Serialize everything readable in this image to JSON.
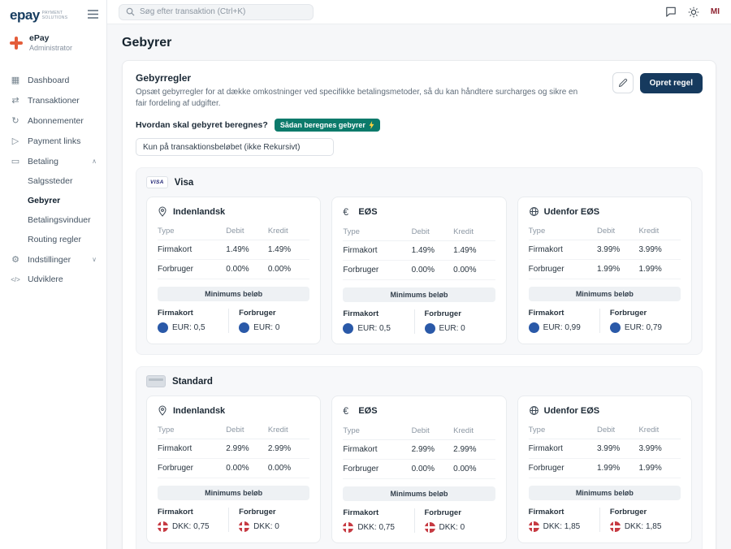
{
  "sidebar": {
    "logo_text": "epay",
    "logo_sub1": "PAYMENT",
    "logo_sub2": "SOLUTIONS",
    "account_name": "ePay",
    "account_role": "Administrator",
    "items": [
      {
        "label": "Dashboard",
        "icon": "dashboard-icon",
        "glyph": "▦"
      },
      {
        "label": "Transaktioner",
        "icon": "transactions-icon",
        "glyph": "⇄"
      },
      {
        "label": "Abonnementer",
        "icon": "subscriptions-icon",
        "glyph": "↻"
      },
      {
        "label": "Payment links",
        "icon": "payment-links-icon",
        "glyph": "▷"
      },
      {
        "label": "Betaling",
        "icon": "payments-icon",
        "glyph": "▭",
        "chevron_glyph": "∧"
      },
      {
        "label": "Indstillinger",
        "icon": "settings-icon",
        "glyph": "⚙",
        "chevron_glyph": "∨"
      },
      {
        "label": "Udviklere",
        "icon": "developers-icon",
        "glyph": "</>"
      }
    ],
    "betaling_sub": [
      {
        "label": "Salgssteder",
        "active": false
      },
      {
        "label": "Gebyrer",
        "active": true
      },
      {
        "label": "Betalingsvinduer",
        "active": false
      },
      {
        "label": "Routing regler",
        "active": false
      }
    ]
  },
  "topbar": {
    "search_placeholder": "Søg efter transaktion (Ctrl+K)",
    "avatar_initials": "MI"
  },
  "page": {
    "title": "Gebyrer"
  },
  "panel": {
    "title": "Gebyrregler",
    "description": "Opsæt gebyrregler for at dække omkostninger ved specifikke betalingsmetoder, så du kan håndtere surcharges og sikre en fair fordeling af udgifter.",
    "create_button": "Opret regel",
    "question_label": "Hvordan skal gebyret beregnes?",
    "help_badge": "Sådan beregnes gebyrer",
    "calculation_value": "Kun på transaktionsbeløbet (ikke Rekursivt)"
  },
  "labels": {
    "type": "Type",
    "debit": "Debit",
    "kredit": "Kredit",
    "minimum": "Minimums beløb",
    "firmakort": "Firmakort",
    "forbruger": "Forbruger"
  },
  "colors": {
    "primary_navy": "#163a5e",
    "badge_teal": "#0c7a6b",
    "eur_flag_blue": "#2a59a8",
    "dkk_flag_red": "#c63a42"
  },
  "groups": [
    {
      "name": "Visa",
      "badge_text": "VISA",
      "currency_flag": "eur",
      "cards": [
        {
          "region": "Indenlandsk",
          "icon": "location-pin-icon",
          "rows": [
            {
              "type": "Firmakort",
              "debit": "1.49%",
              "kredit": "1.49%"
            },
            {
              "type": "Forbruger",
              "debit": "0.00%",
              "kredit": "0.00%"
            }
          ],
          "min_firmakort": "EUR: 0,5",
          "min_forbruger": "EUR: 0"
        },
        {
          "region": "EØS",
          "icon": "euro-icon",
          "rows": [
            {
              "type": "Firmakort",
              "debit": "1.49%",
              "kredit": "1.49%"
            },
            {
              "type": "Forbruger",
              "debit": "0.00%",
              "kredit": "0.00%"
            }
          ],
          "min_firmakort": "EUR: 0,5",
          "min_forbruger": "EUR: 0"
        },
        {
          "region": "Udenfor EØS",
          "icon": "globe-icon",
          "rows": [
            {
              "type": "Firmakort",
              "debit": "3.99%",
              "kredit": "3.99%"
            },
            {
              "type": "Forbruger",
              "debit": "1.99%",
              "kredit": "1.99%"
            }
          ],
          "min_firmakort": "EUR: 0,99",
          "min_forbruger": "EUR: 0,79"
        }
      ]
    },
    {
      "name": "Standard",
      "badge_text": "",
      "currency_flag": "dkk",
      "cards": [
        {
          "region": "Indenlandsk",
          "icon": "location-pin-icon",
          "rows": [
            {
              "type": "Firmakort",
              "debit": "2.99%",
              "kredit": "2.99%"
            },
            {
              "type": "Forbruger",
              "debit": "0.00%",
              "kredit": "0.00%"
            }
          ],
          "min_firmakort": "DKK: 0,75",
          "min_forbruger": "DKK: 0"
        },
        {
          "region": "EØS",
          "icon": "euro-icon",
          "rows": [
            {
              "type": "Firmakort",
              "debit": "2.99%",
              "kredit": "2.99%"
            },
            {
              "type": "Forbruger",
              "debit": "0.00%",
              "kredit": "0.00%"
            }
          ],
          "min_firmakort": "DKK: 0,75",
          "min_forbruger": "DKK: 0"
        },
        {
          "region": "Udenfor EØS",
          "icon": "globe-icon",
          "rows": [
            {
              "type": "Firmakort",
              "debit": "3.99%",
              "kredit": "3.99%"
            },
            {
              "type": "Forbruger",
              "debit": "1.99%",
              "kredit": "1.99%"
            }
          ],
          "min_firmakort": "DKK: 1,85",
          "min_forbruger": "DKK: 1,85"
        }
      ]
    }
  ]
}
